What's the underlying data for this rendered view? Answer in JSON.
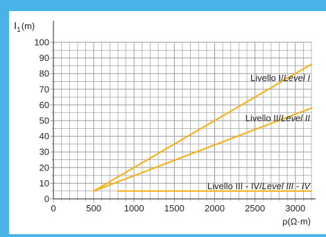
{
  "chart_data": {
    "type": "line",
    "ylabel_main": "I",
    "ylabel_sub": "1",
    "ylabel_unit": "(m)",
    "xlabel": "ρ(Ω·m)",
    "xlim": [
      0,
      3200
    ],
    "ylim": [
      0,
      100
    ],
    "x_ticks": [
      0,
      500,
      1000,
      1500,
      2000,
      2500,
      3000
    ],
    "y_ticks": [
      0,
      10,
      20,
      30,
      40,
      50,
      60,
      70,
      80,
      90,
      100
    ],
    "grid": true,
    "series": [
      {
        "name_main": "Livello I/",
        "name_italic": "Level I",
        "x": [
          500,
          3200
        ],
        "y": [
          5,
          86
        ]
      },
      {
        "name_main": "Livello II/",
        "name_italic": "Level II",
        "x": [
          500,
          3200
        ],
        "y": [
          5,
          58
        ]
      },
      {
        "name_main": "Livello III - IV/",
        "name_italic": "Level III - IV",
        "x": [
          800,
          3200
        ],
        "y": [
          5,
          5
        ]
      }
    ],
    "colors": {
      "series": "#f3b21b",
      "grid": "#999999",
      "axis": "#444444",
      "frame": "#48b3e6"
    }
  }
}
